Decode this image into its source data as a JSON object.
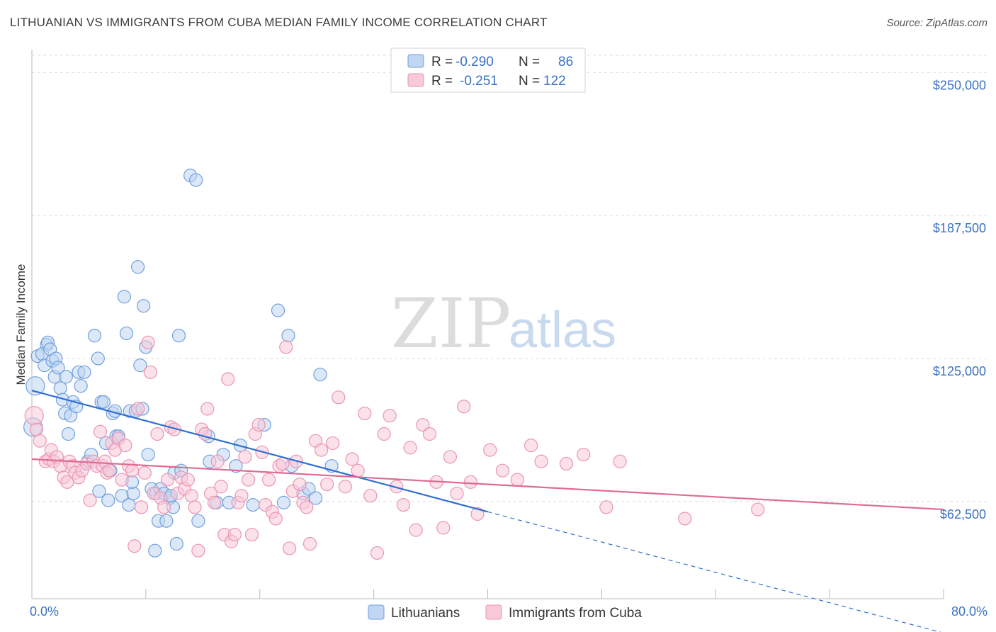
{
  "header": {
    "title": "LITHUANIAN VS IMMIGRANTS FROM CUBA MEDIAN FAMILY INCOME CORRELATION CHART",
    "source": "Source: ZipAtlas.com"
  },
  "watermark": {
    "zip": "ZIP",
    "atlas": "atlas"
  },
  "colors": {
    "blue": "#6f9fdc",
    "blue_fill": "#c0d6f3",
    "blue_line": "#2f6fd0",
    "pink": "#eb94b2",
    "pink_fill": "#f7c9d9",
    "pink_line": "#e06a93",
    "tick_label": "#3a72c4",
    "grid": "#dddddd"
  },
  "legend_top": {
    "rows": [
      {
        "r_label": "R =",
        "r_value": "-0.290",
        "n_label": "N =",
        "n_value": "86"
      },
      {
        "r_label": "R =",
        "r_value": "-0.251",
        "n_label": "N =",
        "n_value": "122"
      }
    ]
  },
  "legend_bottom": [
    "Lithuanians",
    "Immigrants from Cuba"
  ],
  "chart_data": {
    "type": "scatter",
    "title": "LITHUANIAN VS IMMIGRANTS FROM CUBA MEDIAN FAMILY INCOME CORRELATION CHART",
    "xlabel": "",
    "ylabel": "Median Family Income",
    "xlim": [
      0,
      80
    ],
    "ylim": [
      20000,
      260000
    ],
    "x_tick_labels": [
      "0.0%",
      "80.0%"
    ],
    "y_ticks": [
      62500,
      125000,
      187500,
      250000
    ],
    "y_tick_labels": [
      "$62,500",
      "$125,000",
      "$187,500",
      "$250,000"
    ],
    "grid": "horizontal dashed",
    "legend": "bottom-center",
    "series": [
      {
        "name": "Lithuanians",
        "r": -0.29,
        "n": 86,
        "trend": {
          "x": [
            0,
            40
          ],
          "y": [
            111000,
            58000
          ]
        },
        "trend_extension": {
          "x": [
            40,
            80
          ],
          "y": [
            58000,
            5000
          ]
        },
        "points": [
          [
            0.1,
            95000
          ],
          [
            0.3,
            113000
          ],
          [
            0.5,
            126000
          ],
          [
            0.9,
            127000
          ],
          [
            1.1,
            122000
          ],
          [
            1.3,
            131000
          ],
          [
            1.4,
            132000
          ],
          [
            1.6,
            129000
          ],
          [
            1.8,
            124000
          ],
          [
            2.0,
            117000
          ],
          [
            2.1,
            125000
          ],
          [
            2.3,
            121000
          ],
          [
            2.5,
            112000
          ],
          [
            2.7,
            107000
          ],
          [
            2.9,
            101000
          ],
          [
            3.0,
            117000
          ],
          [
            3.2,
            92000
          ],
          [
            3.4,
            100000
          ],
          [
            3.6,
            106000
          ],
          [
            3.9,
            104000
          ],
          [
            4.1,
            119000
          ],
          [
            4.3,
            113000
          ],
          [
            4.6,
            119000
          ],
          [
            4.9,
            80000
          ],
          [
            5.2,
            83000
          ],
          [
            5.5,
            135000
          ],
          [
            5.8,
            125000
          ],
          [
            5.9,
            67000
          ],
          [
            6.1,
            106000
          ],
          [
            6.3,
            106000
          ],
          [
            6.5,
            88000
          ],
          [
            6.7,
            63000
          ],
          [
            6.9,
            76000
          ],
          [
            7.1,
            101000
          ],
          [
            7.3,
            102000
          ],
          [
            7.4,
            91000
          ],
          [
            7.6,
            91000
          ],
          [
            7.9,
            65000
          ],
          [
            8.1,
            152000
          ],
          [
            8.3,
            136000
          ],
          [
            8.5,
            61000
          ],
          [
            8.6,
            102000
          ],
          [
            8.9,
            66000
          ],
          [
            8.8,
            71000
          ],
          [
            9.1,
            102000
          ],
          [
            9.3,
            165000
          ],
          [
            9.5,
            122000
          ],
          [
            9.7,
            103000
          ],
          [
            9.8,
            148000
          ],
          [
            10.0,
            130000
          ],
          [
            10.2,
            83000
          ],
          [
            10.5,
            68000
          ],
          [
            10.8,
            41000
          ],
          [
            10.9,
            66000
          ],
          [
            11.1,
            54000
          ],
          [
            11.3,
            68000
          ],
          [
            11.6,
            66000
          ],
          [
            11.8,
            54000
          ],
          [
            12.1,
            64000
          ],
          [
            12.4,
            60000
          ],
          [
            12.2,
            65000
          ],
          [
            12.5,
            75000
          ],
          [
            12.7,
            44000
          ],
          [
            12.9,
            135000
          ],
          [
            13.1,
            76000
          ],
          [
            13.9,
            205000
          ],
          [
            14.4,
            203000
          ],
          [
            14.6,
            54000
          ],
          [
            15.5,
            91000
          ],
          [
            15.6,
            80000
          ],
          [
            16.2,
            62000
          ],
          [
            16.8,
            83000
          ],
          [
            17.3,
            62000
          ],
          [
            17.9,
            78000
          ],
          [
            18.3,
            87000
          ],
          [
            19.4,
            61000
          ],
          [
            20.4,
            96000
          ],
          [
            21.6,
            146000
          ],
          [
            22.1,
            62000
          ],
          [
            22.5,
            135000
          ],
          [
            22.8,
            78000
          ],
          [
            23.8,
            66000
          ],
          [
            24.3,
            68000
          ],
          [
            24.9,
            64000
          ],
          [
            25.3,
            118000
          ],
          [
            26.3,
            78000
          ]
        ]
      },
      {
        "name": "Immigrants from Cuba",
        "r": -0.251,
        "n": 122,
        "trend": {
          "x": [
            0,
            80
          ],
          "y": [
            81000,
            59000
          ]
        },
        "points": [
          [
            0.2,
            100000
          ],
          [
            0.4,
            94000
          ],
          [
            0.7,
            89000
          ],
          [
            1.2,
            80000
          ],
          [
            1.5,
            81000
          ],
          [
            1.7,
            85000
          ],
          [
            1.9,
            80000
          ],
          [
            2.2,
            82000
          ],
          [
            2.5,
            78000
          ],
          [
            2.8,
            73000
          ],
          [
            3.1,
            71000
          ],
          [
            3.3,
            80000
          ],
          [
            3.6,
            78000
          ],
          [
            3.8,
            75000
          ],
          [
            4.1,
            73000
          ],
          [
            4.4,
            76000
          ],
          [
            4.8,
            79000
          ],
          [
            5.1,
            63000
          ],
          [
            5.4,
            80000
          ],
          [
            5.7,
            78000
          ],
          [
            6.0,
            93000
          ],
          [
            6.2,
            78000
          ],
          [
            6.4,
            80000
          ],
          [
            6.6,
            75000
          ],
          [
            6.8,
            76000
          ],
          [
            7.0,
            88000
          ],
          [
            7.3,
            85000
          ],
          [
            7.6,
            90000
          ],
          [
            7.9,
            72000
          ],
          [
            8.2,
            87000
          ],
          [
            8.5,
            78000
          ],
          [
            8.8,
            76000
          ],
          [
            9.0,
            43000
          ],
          [
            9.3,
            103000
          ],
          [
            9.6,
            60000
          ],
          [
            9.9,
            75000
          ],
          [
            10.2,
            132000
          ],
          [
            10.4,
            119000
          ],
          [
            10.7,
            66000
          ],
          [
            11.0,
            92000
          ],
          [
            11.3,
            64000
          ],
          [
            11.6,
            60000
          ],
          [
            11.9,
            72000
          ],
          [
            12.2,
            95000
          ],
          [
            12.5,
            94000
          ],
          [
            12.8,
            66000
          ],
          [
            13.1,
            73000
          ],
          [
            13.4,
            68000
          ],
          [
            13.7,
            72000
          ],
          [
            14.0,
            65000
          ],
          [
            14.3,
            60000
          ],
          [
            14.6,
            41000
          ],
          [
            14.9,
            94000
          ],
          [
            15.2,
            92000
          ],
          [
            15.4,
            103000
          ],
          [
            15.7,
            66000
          ],
          [
            16.0,
            62000
          ],
          [
            16.3,
            80000
          ],
          [
            16.6,
            69000
          ],
          [
            16.9,
            48000
          ],
          [
            17.2,
            116000
          ],
          [
            17.5,
            45000
          ],
          [
            17.8,
            48000
          ],
          [
            18.1,
            62000
          ],
          [
            18.4,
            65000
          ],
          [
            18.7,
            82000
          ],
          [
            19.0,
            72000
          ],
          [
            19.3,
            48000
          ],
          [
            19.6,
            92000
          ],
          [
            19.9,
            96000
          ],
          [
            20.2,
            84000
          ],
          [
            20.5,
            61000
          ],
          [
            20.8,
            72000
          ],
          [
            21.1,
            58000
          ],
          [
            21.4,
            55000
          ],
          [
            21.7,
            78000
          ],
          [
            22.0,
            79000
          ],
          [
            22.3,
            130000
          ],
          [
            22.6,
            42000
          ],
          [
            22.9,
            67000
          ],
          [
            23.2,
            80000
          ],
          [
            23.5,
            70000
          ],
          [
            23.8,
            62000
          ],
          [
            24.1,
            60000
          ],
          [
            24.4,
            44000
          ],
          [
            24.9,
            89000
          ],
          [
            25.4,
            85000
          ],
          [
            25.9,
            70000
          ],
          [
            26.4,
            88000
          ],
          [
            26.9,
            108000
          ],
          [
            27.5,
            69000
          ],
          [
            28.1,
            81000
          ],
          [
            28.6,
            76000
          ],
          [
            29.2,
            101000
          ],
          [
            29.7,
            65000
          ],
          [
            30.3,
            40000
          ],
          [
            30.9,
            92000
          ],
          [
            31.4,
            100000
          ],
          [
            32.0,
            69000
          ],
          [
            32.6,
            61000
          ],
          [
            33.2,
            86000
          ],
          [
            33.7,
            50000
          ],
          [
            34.3,
            96000
          ],
          [
            34.9,
            92000
          ],
          [
            35.5,
            71000
          ],
          [
            36.1,
            51000
          ],
          [
            36.7,
            82000
          ],
          [
            37.3,
            66000
          ],
          [
            37.9,
            104000
          ],
          [
            38.5,
            71000
          ],
          [
            39.1,
            57000
          ],
          [
            40.2,
            85000
          ],
          [
            41.3,
            76000
          ],
          [
            42.6,
            72000
          ],
          [
            43.8,
            87000
          ],
          [
            44.7,
            80000
          ],
          [
            46.9,
            79000
          ],
          [
            48.4,
            83000
          ],
          [
            50.4,
            60000
          ],
          [
            51.6,
            80000
          ],
          [
            57.3,
            55000
          ],
          [
            63.7,
            59000
          ]
        ]
      }
    ]
  }
}
